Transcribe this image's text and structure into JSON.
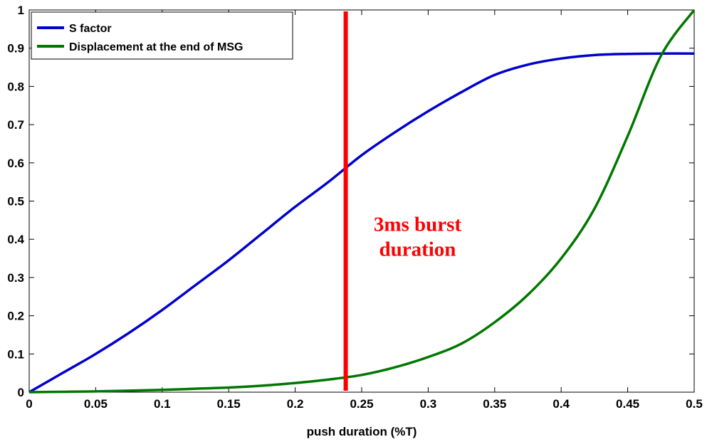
{
  "chart_data": {
    "type": "line",
    "xlabel": "push duration (%T)",
    "ylabel": "",
    "xlim": [
      0,
      0.5
    ],
    "ylim": [
      0,
      1
    ],
    "xticks": [
      "0",
      "0.05",
      "0.1",
      "0.15",
      "0.2",
      "0.25",
      "0.3",
      "0.35",
      "0.4",
      "0.45",
      "0.5"
    ],
    "yticks": [
      "0",
      "0.1",
      "0.2",
      "0.3",
      "0.4",
      "0.5",
      "0.6",
      "0.7",
      "0.8",
      "0.9",
      "1"
    ],
    "grid": false,
    "legend_position": "top-left",
    "x": [
      0,
      0.025,
      0.05,
      0.075,
      0.1,
      0.125,
      0.15,
      0.175,
      0.2,
      0.225,
      0.25,
      0.275,
      0.3,
      0.325,
      0.35,
      0.375,
      0.4,
      0.425,
      0.45,
      0.475,
      0.5
    ],
    "series": [
      {
        "name": "S factor",
        "color": "#0000cc",
        "values": [
          0.0,
          0.05,
          0.1,
          0.155,
          0.215,
          0.28,
          0.345,
          0.415,
          0.485,
          0.55,
          0.62,
          0.68,
          0.735,
          0.785,
          0.83,
          0.857,
          0.873,
          0.882,
          0.885,
          0.886,
          0.886
        ]
      },
      {
        "name": "Displacement at the end of MSG",
        "color": "#007700",
        "values": [
          0.0,
          0.001,
          0.002,
          0.004,
          0.006,
          0.009,
          0.012,
          0.017,
          0.024,
          0.033,
          0.045,
          0.065,
          0.092,
          0.127,
          0.183,
          0.255,
          0.35,
          0.48,
          0.67,
          0.88,
          1.0
        ]
      }
    ],
    "vline": {
      "x": 0.238,
      "color": "#ff0000"
    },
    "annotation": {
      "line1": "3ms burst",
      "line2": "duration",
      "x": 0.292,
      "y": 0.385,
      "color": "#ff0000"
    }
  }
}
